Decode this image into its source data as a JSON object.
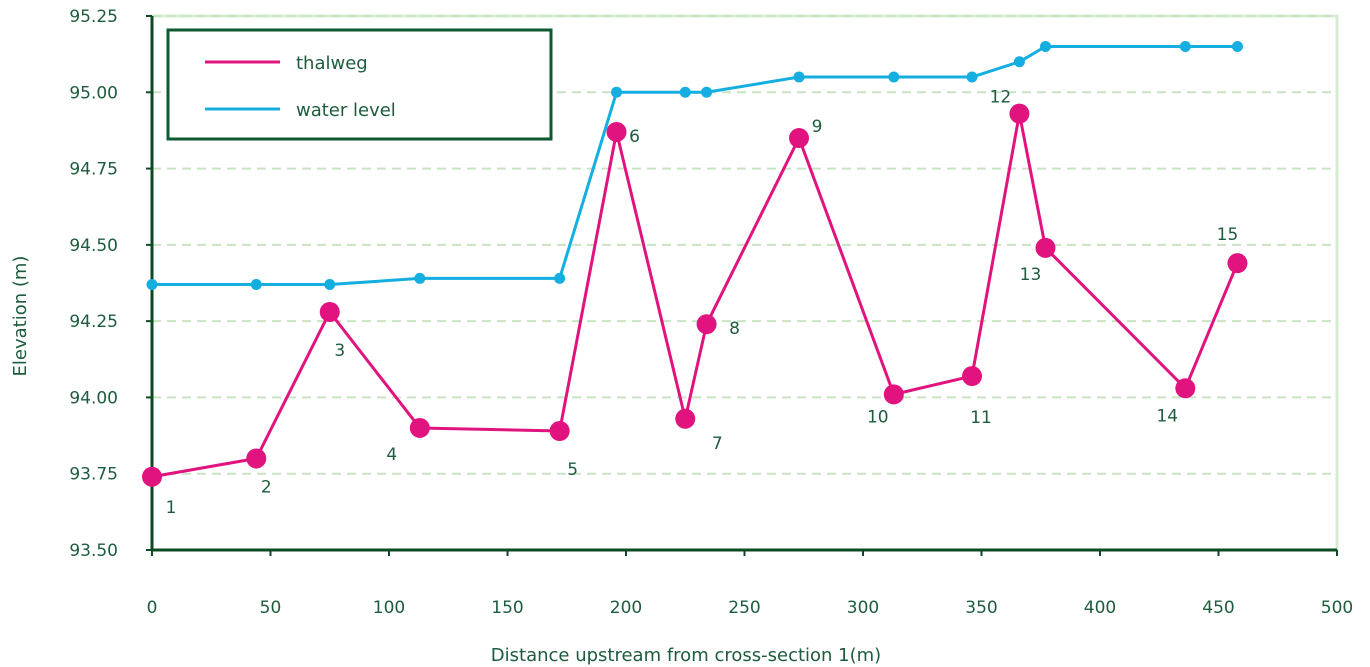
{
  "colors": {
    "background": "#ffffff",
    "plot_border": "#d6ecd2",
    "gridline": "#c9e4c3",
    "axis": "#0c4a22",
    "text": "#1d5c3c",
    "thalweg": "#e0137f",
    "water_level": "#14aee0",
    "legend_border": "#0c5a32"
  },
  "chart_data": {
    "type": "line",
    "title": "",
    "xlabel": "Distance upstream from cross-section 1(m)",
    "ylabel": "Elevation (m)",
    "xlim": [
      0,
      500
    ],
    "ylim": [
      93.5,
      95.25
    ],
    "xticks": [
      0,
      50,
      100,
      150,
      200,
      250,
      300,
      350,
      400,
      450,
      500
    ],
    "yticks": [
      "93.50",
      "93.75",
      "94.00",
      "94.25",
      "94.50",
      "94.75",
      "95.00",
      "95.25"
    ],
    "grid": "horizontal dashed",
    "legend_position": "top-left",
    "series": [
      {
        "name": "thalweg",
        "color": "#e0137f",
        "x": [
          0,
          44,
          75,
          113,
          172,
          196,
          225,
          234,
          273,
          313,
          346,
          366,
          377,
          436,
          458
        ],
        "y": [
          93.74,
          93.8,
          94.28,
          93.9,
          93.89,
          94.87,
          93.93,
          94.24,
          94.85,
          94.01,
          94.07,
          94.93,
          94.49,
          94.03,
          94.44
        ],
        "point_labels": [
          "1",
          "2",
          "3",
          "4",
          "5",
          "6",
          "7",
          "8",
          "9",
          "10",
          "11",
          "12",
          "13",
          "14",
          "15"
        ]
      },
      {
        "name": "water level",
        "color": "#14aee0",
        "x": [
          0,
          44,
          75,
          113,
          172,
          196,
          225,
          234,
          273,
          313,
          346,
          366,
          377,
          436,
          458
        ],
        "y": [
          94.37,
          94.37,
          94.37,
          94.39,
          94.39,
          95.0,
          95.0,
          95.0,
          95.05,
          95.05,
          95.05,
          95.1,
          95.15,
          95.15,
          95.15
        ]
      }
    ]
  }
}
